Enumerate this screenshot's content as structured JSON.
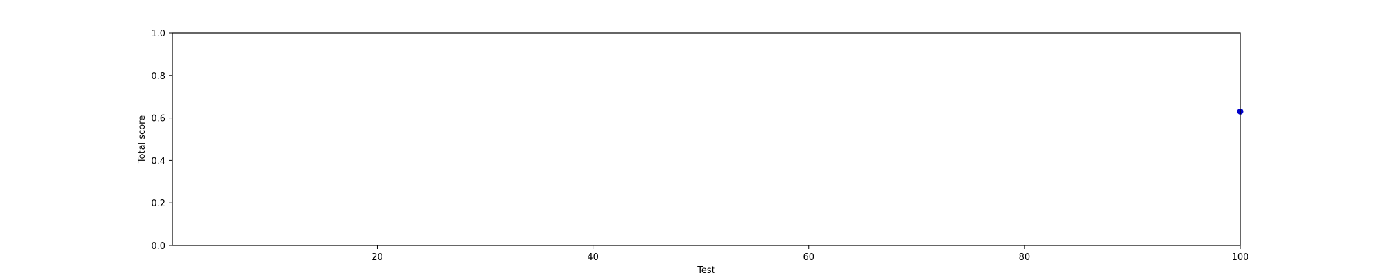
{
  "chart_data": {
    "type": "scatter",
    "title": "",
    "xlabel": "Test",
    "ylabel": "Total score",
    "xlim": [
      1,
      100
    ],
    "ylim": [
      0.0,
      1.0
    ],
    "xticks": [
      20,
      40,
      60,
      80,
      100
    ],
    "yticks": [
      0.0,
      0.2,
      0.4,
      0.6,
      0.8,
      1.0
    ],
    "ytick_labels": [
      "0.0",
      "0.2",
      "0.4",
      "0.6",
      "0.8",
      "1.0"
    ],
    "grid": false,
    "series": [
      {
        "color": "#0000cc",
        "points": [
          {
            "x": 100,
            "y": 0.63
          }
        ]
      }
    ]
  }
}
